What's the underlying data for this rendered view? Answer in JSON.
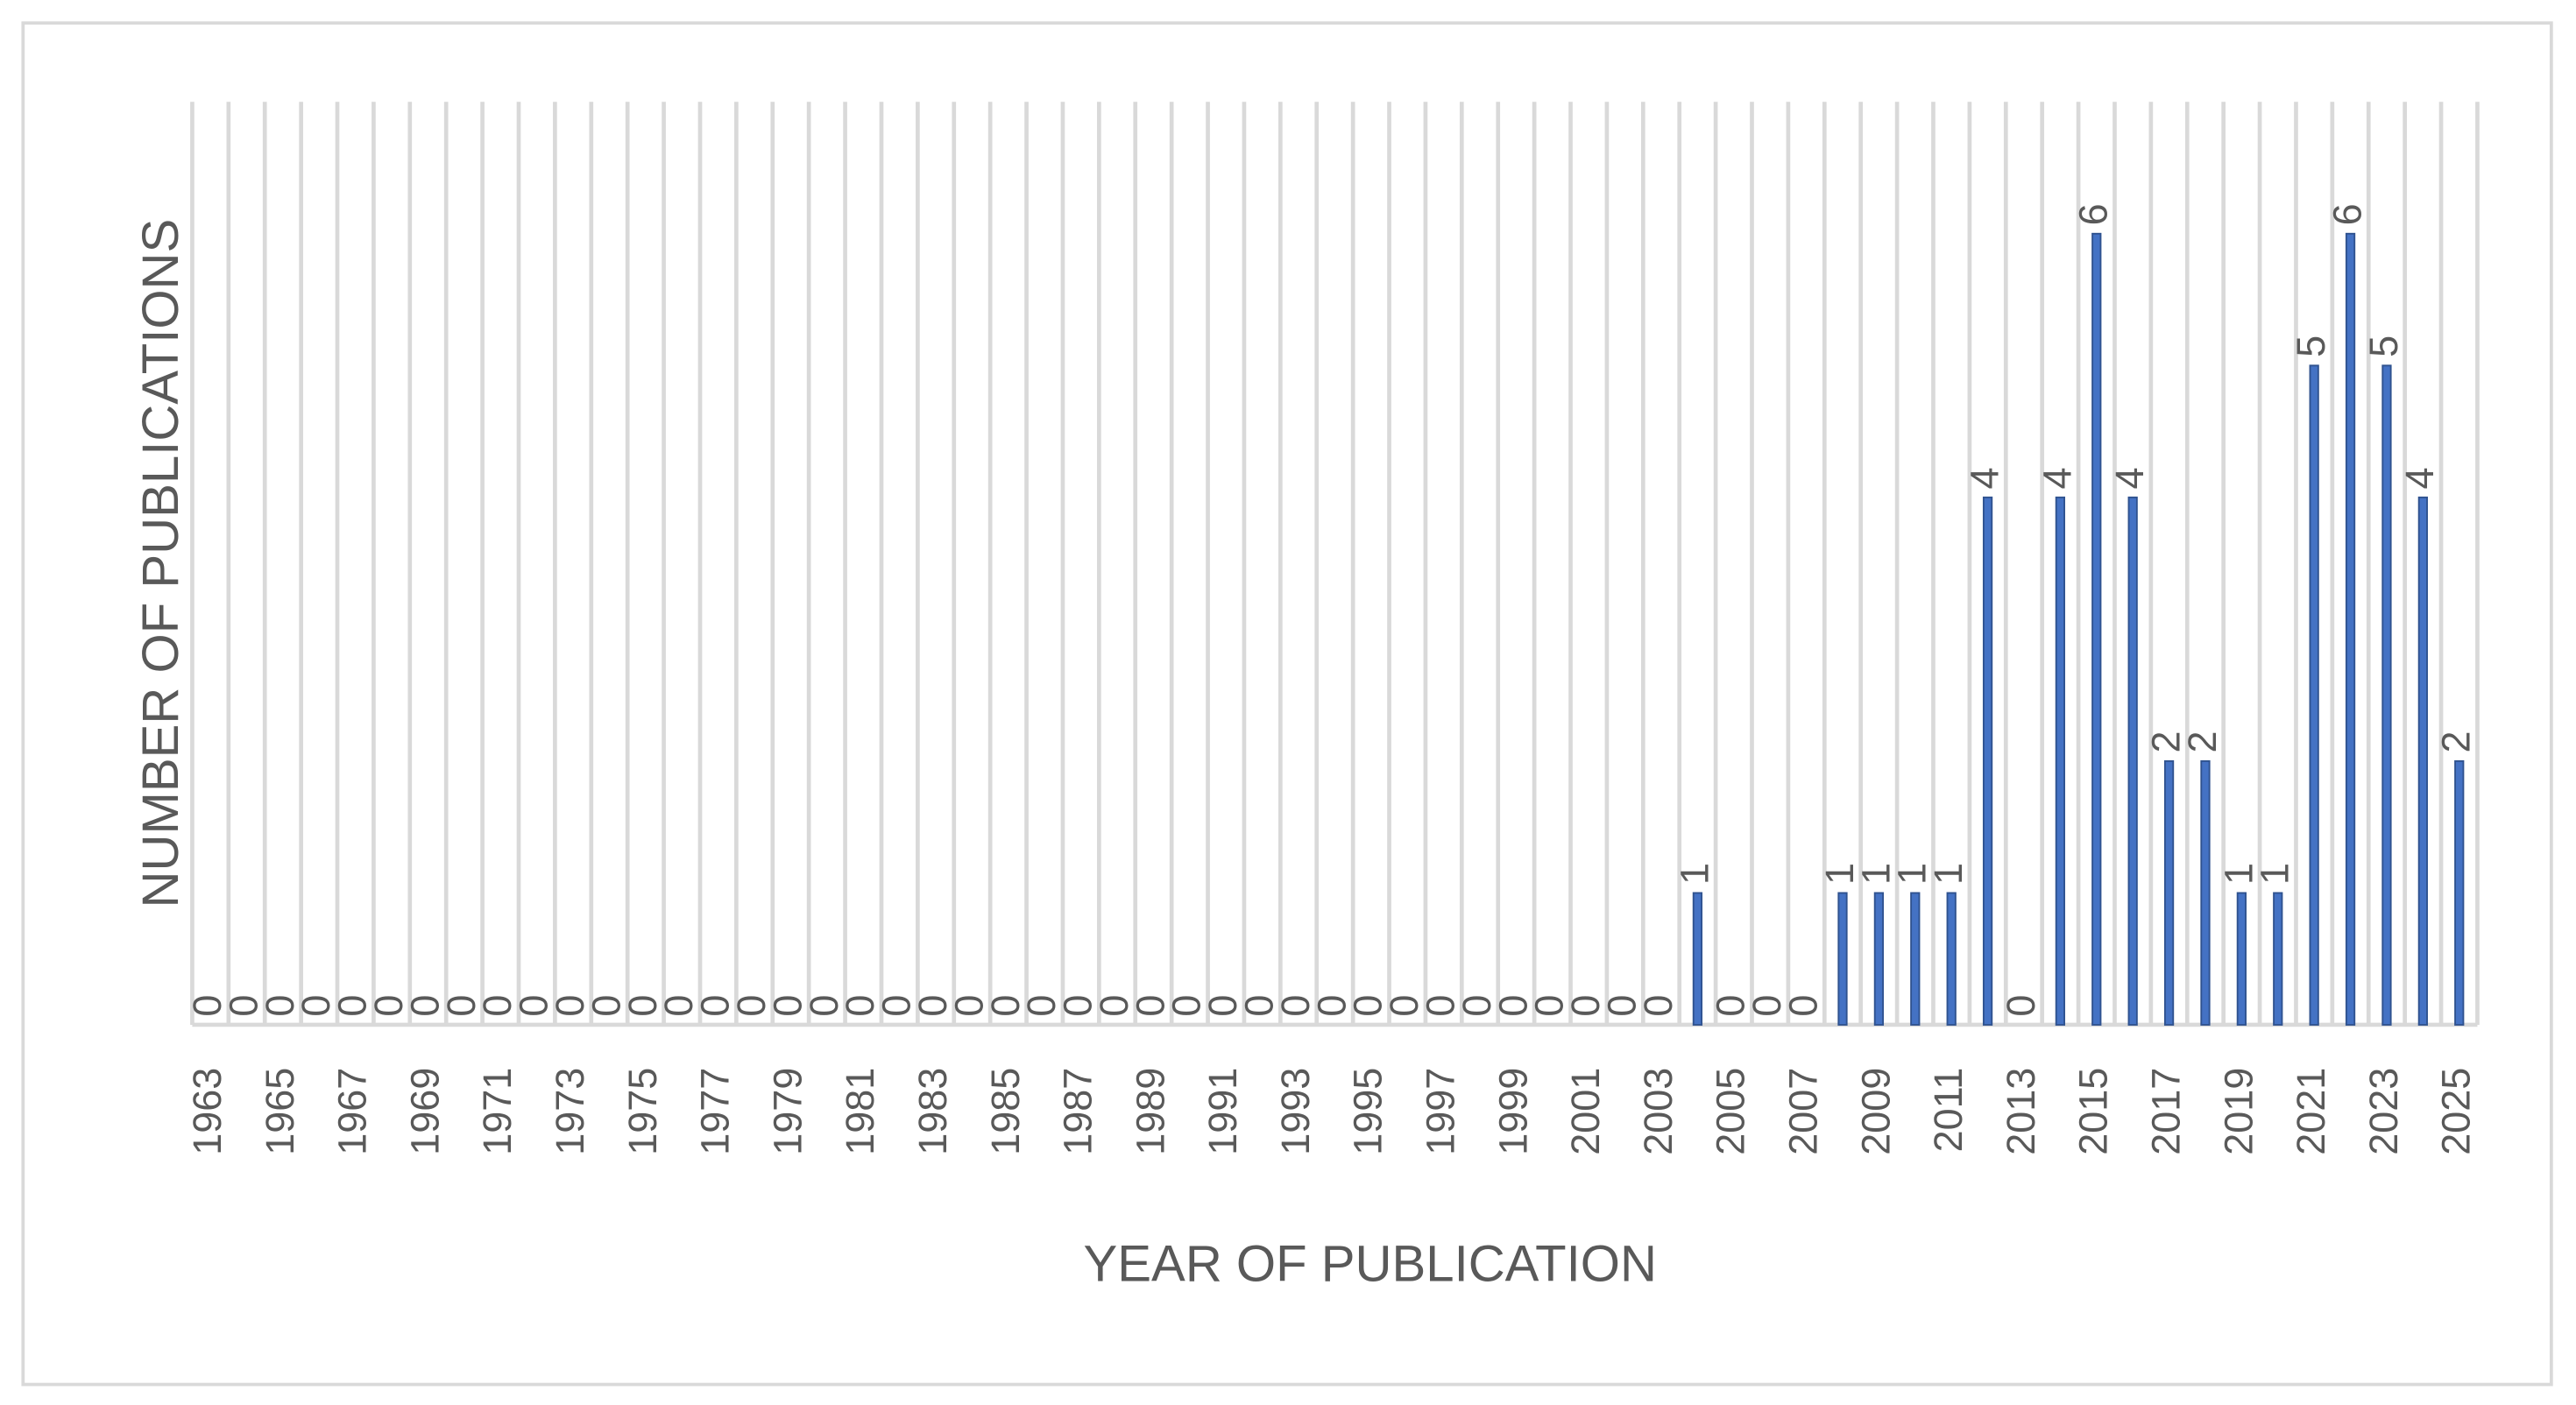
{
  "chart_data": {
    "type": "bar",
    "x_label": "YEAR OF PUBLICATION",
    "y_label": "NUMBER OF PUBLICATIONS",
    "categories": [
      "1963",
      null,
      "1965",
      null,
      "1967",
      null,
      "1969",
      null,
      "1971",
      null,
      "1973",
      null,
      "1975",
      null,
      "1977",
      null,
      "1979",
      null,
      "1981",
      null,
      "1983",
      null,
      "1985",
      null,
      "1987",
      null,
      "1989",
      null,
      "1991",
      null,
      "1993",
      null,
      "1995",
      null,
      "1997",
      null,
      "1999",
      null,
      "2001",
      null,
      "2003",
      null,
      "2005",
      null,
      "2007",
      null,
      "2009",
      null,
      "2011",
      null,
      "2013",
      null,
      "2015",
      null,
      "2017",
      null,
      "2019",
      null,
      "2021",
      null,
      "2023",
      null,
      "2025"
    ],
    "values": [
      0,
      0,
      0,
      0,
      0,
      0,
      0,
      0,
      0,
      0,
      0,
      0,
      0,
      0,
      0,
      0,
      0,
      0,
      0,
      0,
      0,
      0,
      0,
      0,
      0,
      0,
      0,
      0,
      0,
      0,
      0,
      0,
      0,
      0,
      0,
      0,
      0,
      0,
      0,
      0,
      0,
      1,
      0,
      0,
      0,
      1,
      1,
      1,
      1,
      4,
      0,
      4,
      6,
      4,
      2,
      2,
      1,
      1,
      5,
      6,
      5,
      4,
      2
    ],
    "color": "#4472c4",
    "ylim": [
      0,
      7
    ],
    "grid": true,
    "data_labels": true
  }
}
